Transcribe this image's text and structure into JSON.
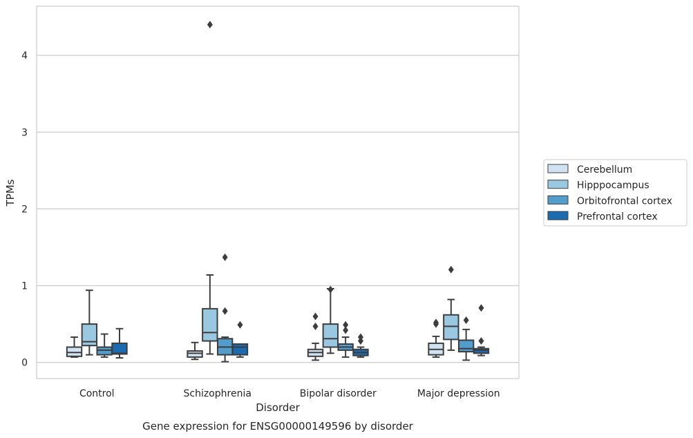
{
  "chart_data": {
    "type": "box",
    "title": "Gene expression for ENSG00000149596 by disorder",
    "xlabel": "Disorder",
    "ylabel": "TPMs",
    "ylim": [
      -0.21,
      4.64
    ],
    "yticks": [
      "0",
      "1",
      "2",
      "3",
      "4"
    ],
    "grid": true,
    "legend_position": "right, outside plot",
    "categories": [
      "Control",
      "Schizophrenia",
      "Bipolar disorder",
      "Major depression"
    ],
    "series": [
      {
        "name": "Cerebellum",
        "color": "#d1e2f2",
        "boxes": [
          {
            "whislo": 0.07,
            "q1": 0.08,
            "med": 0.13,
            "q3": 0.2,
            "whishi": 0.33,
            "fliers": []
          },
          {
            "whislo": 0.04,
            "q1": 0.07,
            "med": 0.12,
            "q3": 0.15,
            "whishi": 0.26,
            "fliers": []
          },
          {
            "whislo": 0.03,
            "q1": 0.08,
            "med": 0.13,
            "q3": 0.17,
            "whishi": 0.25,
            "fliers": [
              0.47,
              0.6
            ]
          },
          {
            "whislo": 0.07,
            "q1": 0.1,
            "med": 0.17,
            "q3": 0.25,
            "whishi": 0.34,
            "fliers": [
              0.5,
              0.52
            ]
          }
        ]
      },
      {
        "name": "Hipppocampus",
        "color": "#9ac8e0",
        "boxes": [
          {
            "whislo": 0.1,
            "q1": 0.22,
            "med": 0.27,
            "q3": 0.5,
            "whishi": 0.94,
            "fliers": []
          },
          {
            "whislo": 0.11,
            "q1": 0.28,
            "med": 0.39,
            "q3": 0.7,
            "whishi": 1.14,
            "fliers": [
              4.4
            ]
          },
          {
            "whislo": 0.12,
            "q1": 0.2,
            "med": 0.31,
            "q3": 0.5,
            "whishi": 0.96,
            "fliers": [
              0.95
            ]
          },
          {
            "whislo": 0.16,
            "q1": 0.3,
            "med": 0.47,
            "q3": 0.62,
            "whishi": 0.82,
            "fliers": [
              1.21
            ]
          }
        ]
      },
      {
        "name": "Orbitofrontal cortex",
        "color": "#529dcc",
        "boxes": [
          {
            "whislo": 0.07,
            "q1": 0.1,
            "med": 0.16,
            "q3": 0.2,
            "whishi": 0.37,
            "fliers": []
          },
          {
            "whislo": 0.01,
            "q1": 0.1,
            "med": 0.2,
            "q3": 0.31,
            "whishi": 0.33,
            "fliers": [
              0.67,
              1.37
            ]
          },
          {
            "whislo": 0.07,
            "q1": 0.16,
            "med": 0.2,
            "q3": 0.24,
            "whishi": 0.33,
            "fliers": [
              0.42,
              0.49
            ]
          },
          {
            "whislo": 0.03,
            "q1": 0.14,
            "med": 0.18,
            "q3": 0.29,
            "whishi": 0.43,
            "fliers": [
              0.55
            ]
          }
        ]
      },
      {
        "name": "Prefrontal cortex",
        "color": "#1c6aaf",
        "boxes": [
          {
            "whislo": 0.06,
            "q1": 0.11,
            "med": 0.12,
            "q3": 0.25,
            "whishi": 0.44,
            "fliers": []
          },
          {
            "whislo": 0.07,
            "q1": 0.1,
            "med": 0.2,
            "q3": 0.24,
            "whishi": 0.24,
            "fliers": [
              0.49
            ]
          },
          {
            "whislo": 0.07,
            "q1": 0.09,
            "med": 0.13,
            "q3": 0.17,
            "whishi": 0.2,
            "fliers": [
              0.28,
              0.33
            ]
          },
          {
            "whislo": 0.09,
            "q1": 0.12,
            "med": 0.16,
            "q3": 0.18,
            "whishi": 0.2,
            "fliers": [
              0.28,
              0.71
            ]
          }
        ]
      }
    ]
  }
}
